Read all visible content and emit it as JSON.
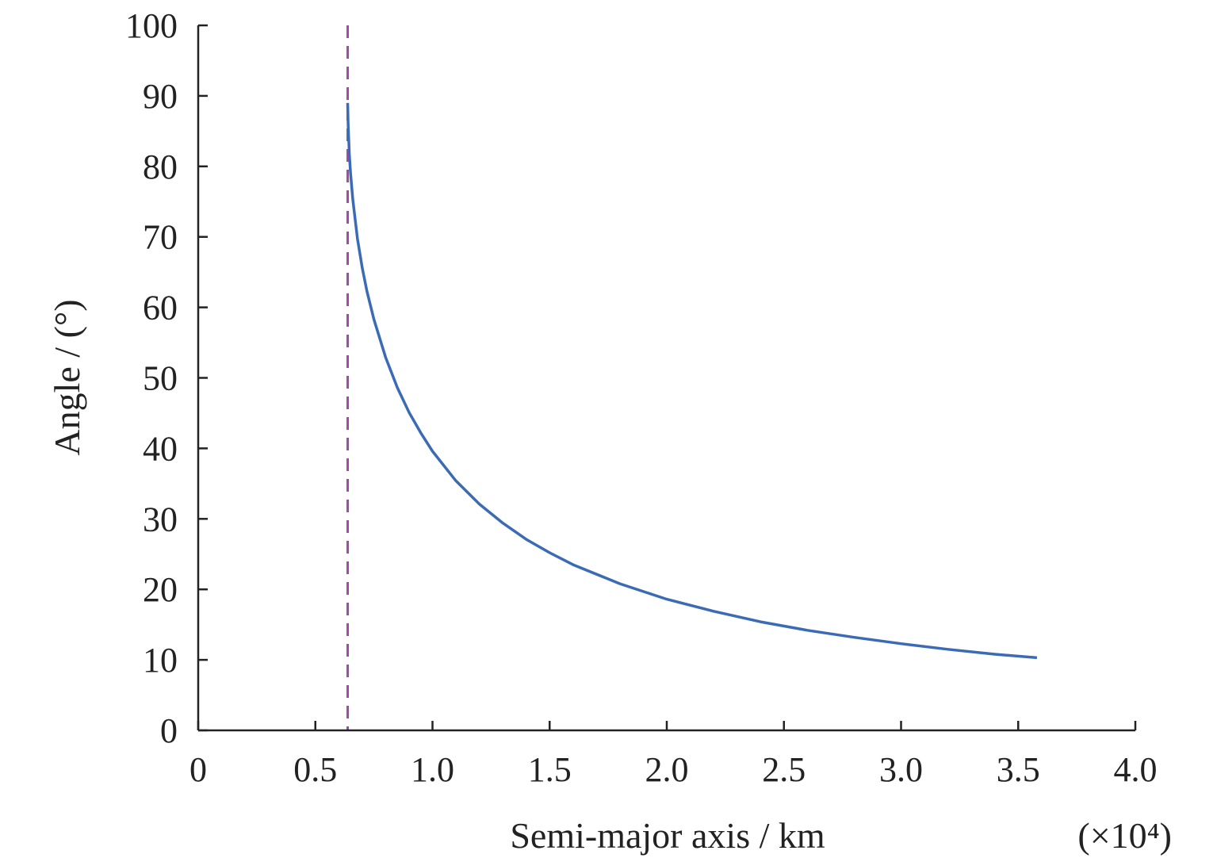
{
  "chart_data": {
    "type": "line",
    "title": "",
    "xlabel": "Semi-major axis / km",
    "x_multiplier_label": "(×10⁴)",
    "ylabel": "Angle / (°)",
    "xlim": [
      0,
      4.0
    ],
    "ylim": [
      0,
      100
    ],
    "x_ticks": [
      0,
      0.5,
      1.0,
      1.5,
      2.0,
      2.5,
      3.0,
      3.5,
      4.0
    ],
    "x_tick_labels": [
      "0",
      "0.5",
      "1.0",
      "1.5",
      "2.0",
      "2.5",
      "3.0",
      "3.5",
      "4.0"
    ],
    "y_ticks": [
      0,
      10,
      20,
      30,
      40,
      50,
      60,
      70,
      80,
      90,
      100
    ],
    "y_tick_labels": [
      "0",
      "10",
      "20",
      "30",
      "40",
      "50",
      "60",
      "70",
      "80",
      "90",
      "100"
    ],
    "grid": false,
    "legend": "none",
    "series": [
      {
        "color": "#3b6bb5",
        "x": [
          0.638,
          0.64,
          0.645,
          0.65,
          0.66,
          0.68,
          0.7,
          0.72,
          0.75,
          0.8,
          0.85,
          0.9,
          0.95,
          1.0,
          1.1,
          1.2,
          1.3,
          1.4,
          1.5,
          1.6,
          1.8,
          2.0,
          2.2,
          2.4,
          2.6,
          2.8,
          3.0,
          3.2,
          3.4,
          3.58
        ],
        "y": [
          89.0,
          86.0,
          81.7,
          79.1,
          75.3,
          69.7,
          65.6,
          62.3,
          58.3,
          52.9,
          48.6,
          45.1,
          42.2,
          39.6,
          35.4,
          32.1,
          29.4,
          27.1,
          25.2,
          23.5,
          20.8,
          18.6,
          16.9,
          15.4,
          14.2,
          13.2,
          12.3,
          11.5,
          10.8,
          10.3
        ]
      }
    ],
    "reference_lines": [
      {
        "orientation": "vertical",
        "x": 0.638,
        "style": "dashed",
        "color": "#a04aa8"
      }
    ]
  }
}
